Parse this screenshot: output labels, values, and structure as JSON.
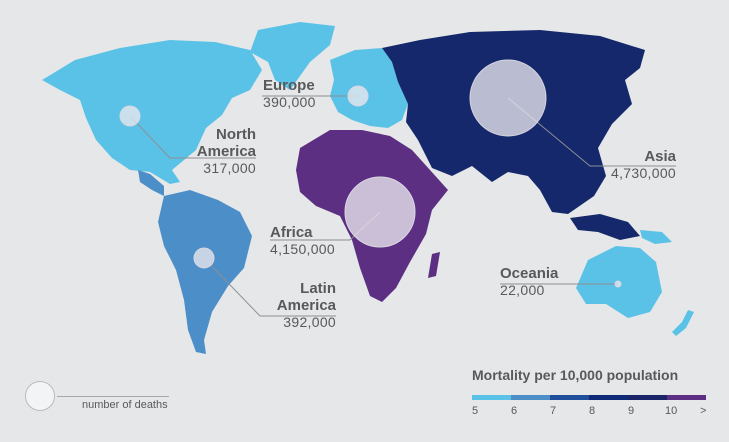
{
  "colors": {
    "background": "#e6e7e8",
    "scale": [
      "#5bc2e7",
      "#4b8ec8",
      "#1f4e9a",
      "#0f2a76",
      "#1a2468",
      "#3a2a7a",
      "#5c2f83"
    ],
    "North America": "#5bc2e7",
    "Europe": "#5bc2e7",
    "Latin America": "#4b8ec8",
    "Africa": "#5c2f83",
    "Asia": "#14286b",
    "Oceania": "#5bc2e7"
  },
  "regions": {
    "north_america": {
      "name": "North America",
      "name_line1": "North",
      "name_line2": "America",
      "deaths": "317,000"
    },
    "europe": {
      "name": "Europe",
      "deaths": "390,000"
    },
    "asia": {
      "name": "Asia",
      "deaths": "4,730,000"
    },
    "africa": {
      "name": "Africa",
      "deaths": "4,150,000"
    },
    "latin_america": {
      "name": "Latin America",
      "name_line1": "Latin",
      "name_line2": "America",
      "deaths": "392,000"
    },
    "oceania": {
      "name": "Oceania",
      "deaths": "22,000"
    }
  },
  "legend": {
    "title": "Mortality per 10,000 population",
    "ticks": [
      "5",
      "6",
      "7",
      "8",
      "9",
      "10",
      ">"
    ],
    "bubble_label": "number of deaths"
  }
}
